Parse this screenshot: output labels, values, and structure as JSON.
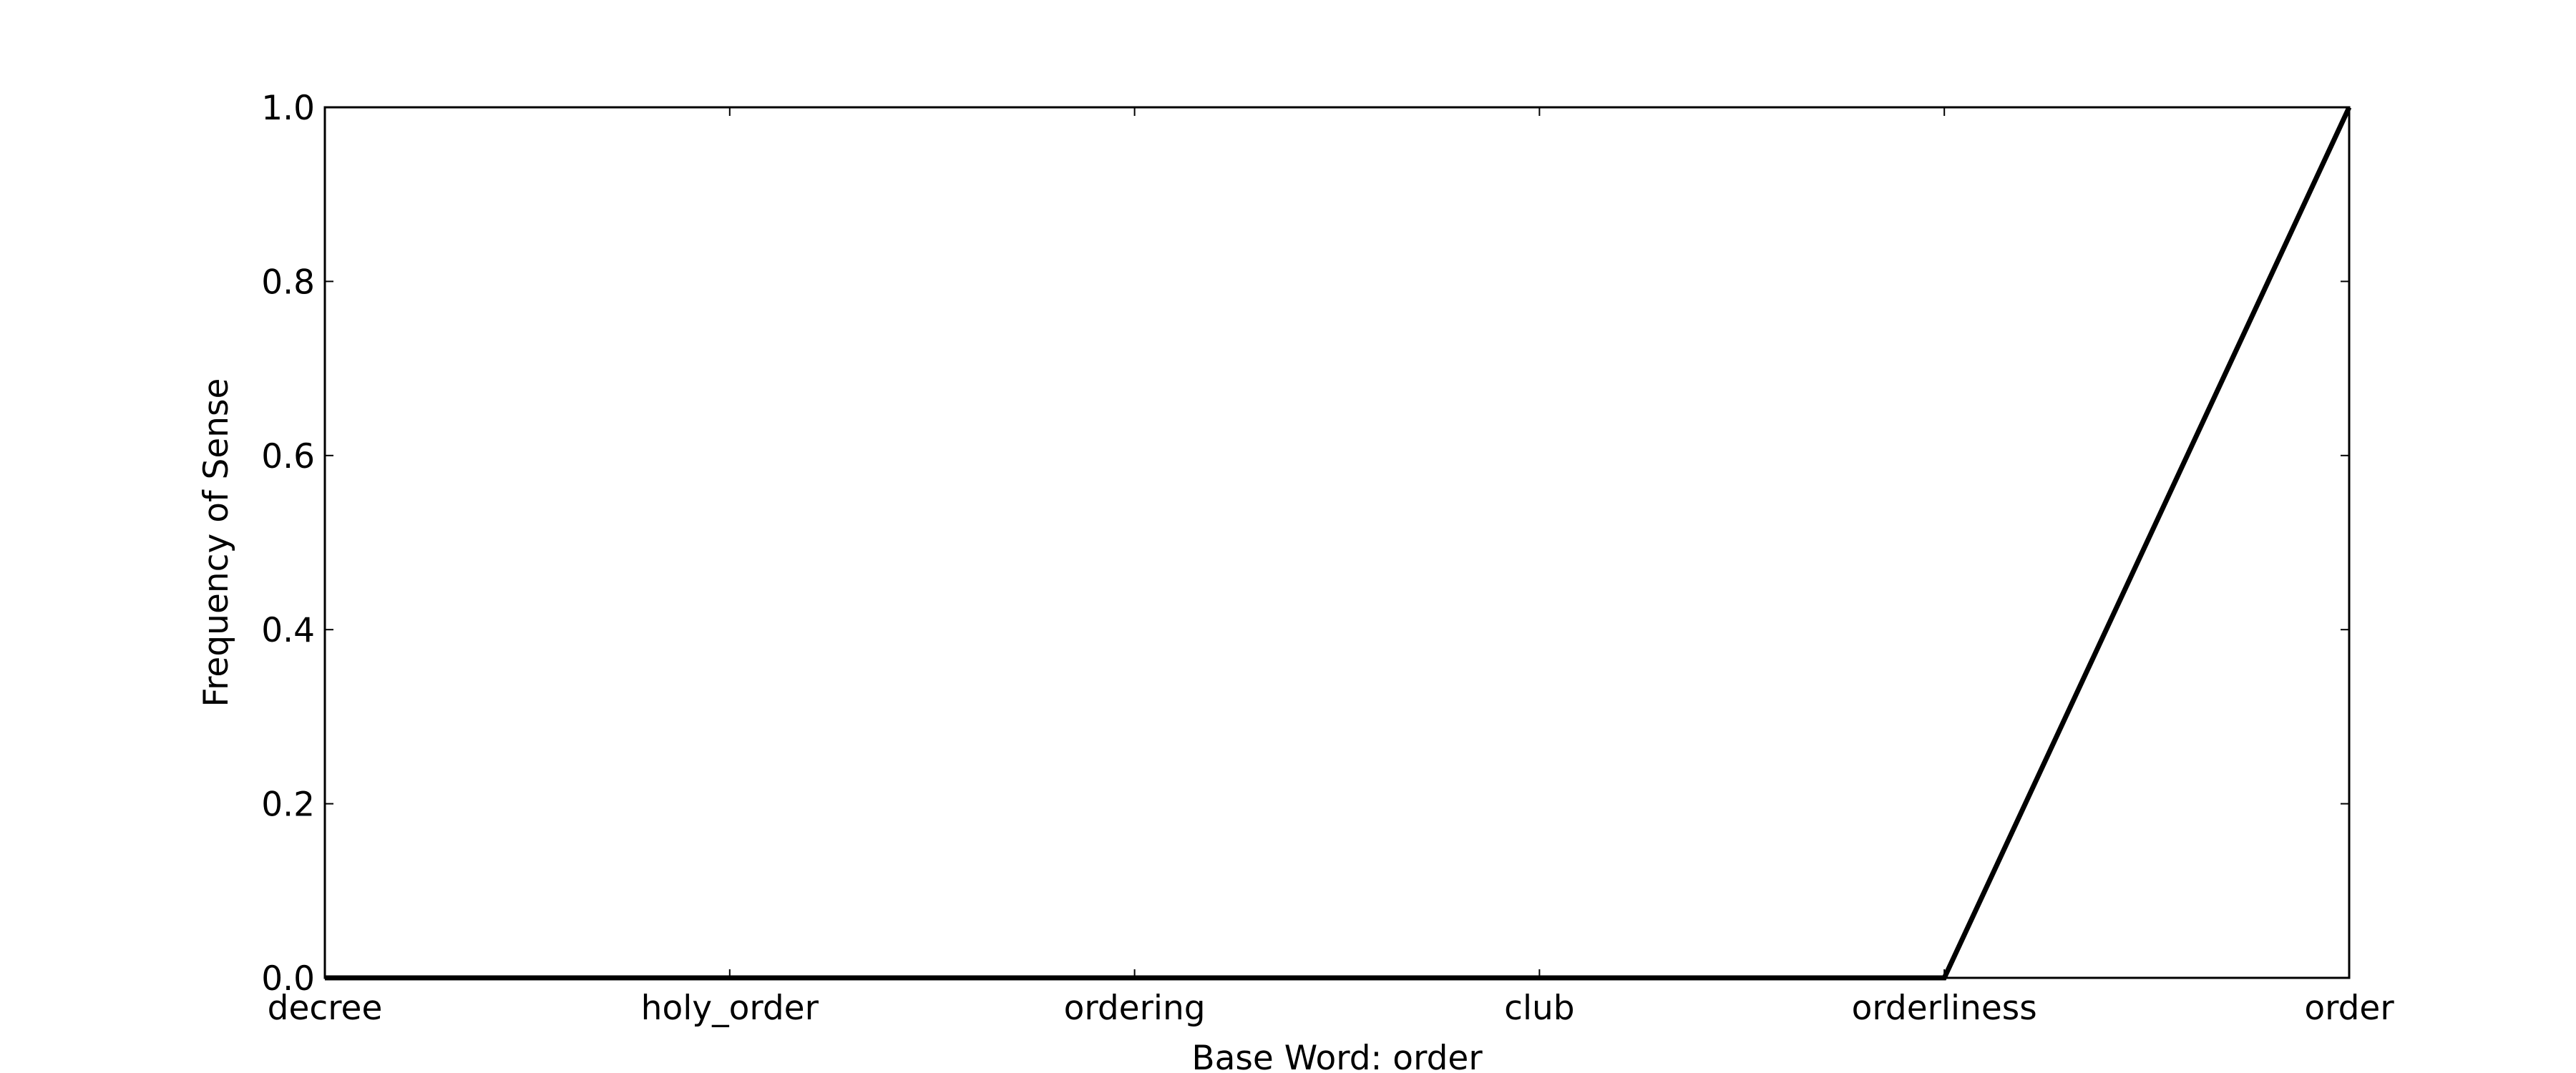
{
  "chart_data": {
    "type": "line",
    "categories": [
      "decree",
      "holy_order",
      "ordering",
      "club",
      "orderliness",
      "order"
    ],
    "series": [
      {
        "values": [
          0.0,
          0.0,
          0.0,
          0.0,
          0.0,
          1.0
        ]
      }
    ],
    "xlabel": "Base Word: order",
    "ylabel": "Frequency of Sense",
    "ylim": [
      0,
      1.0
    ],
    "yticks": [
      "0.0",
      "0.2",
      "0.4",
      "0.6",
      "0.8",
      "1.0"
    ],
    "grid": false,
    "line_color": "#000000"
  }
}
